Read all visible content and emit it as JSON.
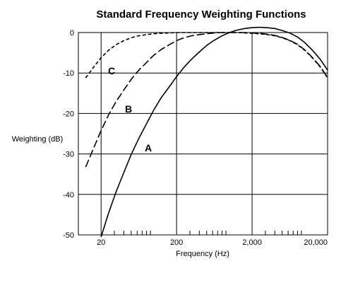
{
  "chart_data": {
    "type": "line",
    "title": "Standard Frequency Weighting Functions",
    "xlabel": "Frequency (Hz)",
    "ylabel": "Weighting (dB)",
    "x_scale": "log",
    "xlim": [
      10,
      20000
    ],
    "ylim": [
      -50,
      0
    ],
    "x_major_ticks": [
      20,
      200,
      2000,
      20000
    ],
    "x_tick_labels": [
      "20",
      "200",
      "2,000",
      "20,000"
    ],
    "y_ticks": [
      0,
      -10,
      -20,
      -30,
      -40,
      -50
    ],
    "y_tick_labels": [
      "0",
      "-10",
      "-20",
      "-30",
      "-40",
      "-50"
    ],
    "grid": true,
    "series": [
      {
        "name": "A",
        "line_style": "solid",
        "x": [
          20,
          25,
          31.5,
          40,
          50,
          63,
          80,
          100,
          125,
          160,
          200,
          250,
          315,
          400,
          500,
          630,
          800,
          1000,
          1250,
          1600,
          2000,
          2500,
          3150,
          4000,
          5000,
          6300,
          8000,
          10000,
          12500,
          16000,
          20000
        ],
        "values": [
          -50.5,
          -44.7,
          -39.4,
          -34.6,
          -30.2,
          -26.2,
          -22.5,
          -19.1,
          -16.1,
          -13.4,
          -10.9,
          -8.6,
          -6.6,
          -4.8,
          -3.2,
          -1.9,
          -0.8,
          0.0,
          0.6,
          1.0,
          1.2,
          1.3,
          1.2,
          1.0,
          0.5,
          -0.1,
          -1.1,
          -2.5,
          -4.3,
          -6.6,
          -9.3
        ]
      },
      {
        "name": "B",
        "line_style": "dashed",
        "x": [
          12.5,
          16,
          20,
          25,
          31.5,
          40,
          50,
          63,
          80,
          100,
          125,
          160,
          200,
          250,
          315,
          400,
          500,
          630,
          800,
          1000,
          1250,
          1600,
          2000,
          2500,
          3150,
          4000,
          5000,
          6300,
          8000,
          10000,
          12500,
          16000,
          20000
        ],
        "values": [
          -33.2,
          -28.5,
          -24.2,
          -20.4,
          -17.1,
          -14.2,
          -11.6,
          -9.3,
          -7.4,
          -5.6,
          -4.2,
          -3.0,
          -2.0,
          -1.3,
          -0.8,
          -0.5,
          -0.3,
          -0.1,
          0.0,
          0.0,
          0.0,
          0.0,
          -0.1,
          -0.2,
          -0.4,
          -0.7,
          -1.2,
          -1.9,
          -2.9,
          -4.3,
          -6.1,
          -8.4,
          -11.1
        ]
      },
      {
        "name": "C",
        "line_style": "short-dashed",
        "x": [
          12.5,
          16,
          20,
          25,
          31.5,
          40,
          50,
          63,
          80,
          100,
          125,
          160,
          200,
          250,
          315,
          400,
          500,
          630,
          800,
          1000,
          1250,
          1600,
          2000,
          2500,
          3150,
          4000,
          5000,
          6300,
          8000,
          10000,
          12500,
          16000,
          20000
        ],
        "values": [
          -11.2,
          -8.5,
          -6.2,
          -4.4,
          -3.0,
          -2.0,
          -1.3,
          -0.8,
          -0.5,
          -0.3,
          -0.2,
          -0.1,
          0.0,
          0.0,
          0.0,
          0.0,
          0.0,
          0.0,
          0.0,
          0.0,
          0.0,
          -0.1,
          -0.2,
          -0.3,
          -0.5,
          -0.8,
          -1.3,
          -2.0,
          -3.0,
          -4.4,
          -6.2,
          -8.5,
          -11.2
        ]
      }
    ]
  }
}
